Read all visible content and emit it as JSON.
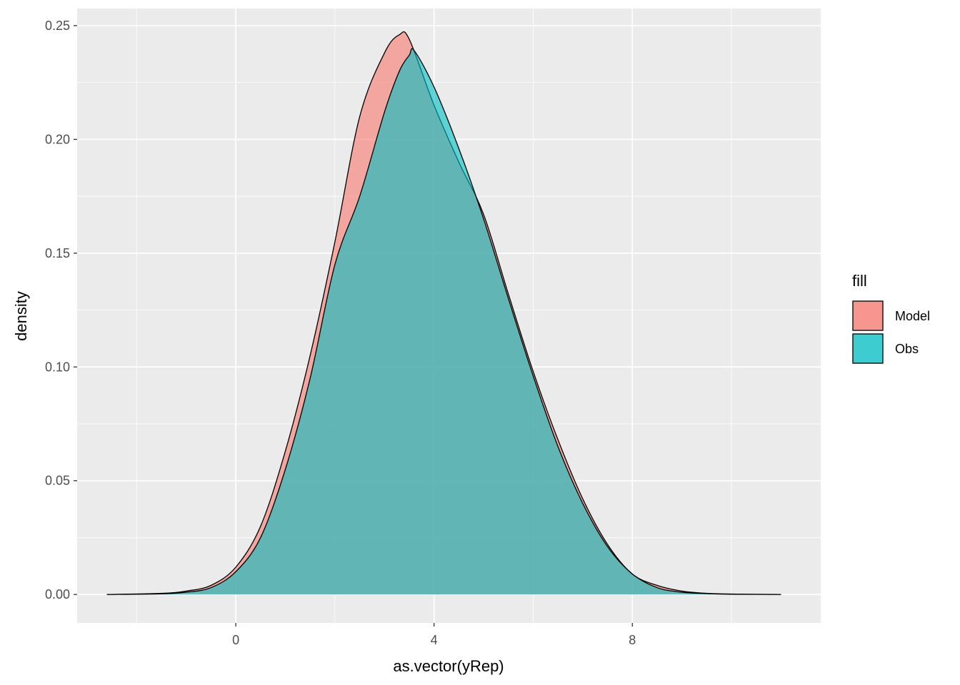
{
  "chart_data": {
    "type": "area",
    "subtype": "density",
    "title": "",
    "xlabel": "as.vector(yRep)",
    "ylabel": "density",
    "xlim": [
      -3.2,
      11.8
    ],
    "ylim": [
      -0.0125,
      0.2575
    ],
    "x_ticks": [
      0,
      4,
      8
    ],
    "x_tick_labels": [
      "0",
      "4",
      "8"
    ],
    "y_ticks": [
      0,
      0.05,
      0.1,
      0.15,
      0.2,
      0.25
    ],
    "y_tick_labels": [
      "0.00",
      "0.05",
      "0.10",
      "0.15",
      "0.20",
      "0.25"
    ],
    "grid": true,
    "legend": {
      "title": "fill",
      "position": "right"
    },
    "series": [
      {
        "name": "Model",
        "color": "#F8766D",
        "x": [
          -2.6,
          -1.5,
          -1.0,
          -0.5,
          0.0,
          0.5,
          1.0,
          1.5,
          2.0,
          2.5,
          3.0,
          3.3,
          3.5,
          4.0,
          4.5,
          5.0,
          5.5,
          6.0,
          6.5,
          7.0,
          7.5,
          8.0,
          8.5,
          9.0,
          9.5,
          10.0,
          11.0
        ],
        "y": [
          0.0,
          0.0005,
          0.0015,
          0.004,
          0.012,
          0.03,
          0.063,
          0.105,
          0.155,
          0.21,
          0.238,
          0.246,
          0.244,
          0.215,
          0.19,
          0.167,
          0.132,
          0.098,
          0.068,
          0.042,
          0.022,
          0.009,
          0.004,
          0.0015,
          0.0005,
          0.0002,
          0.0
        ]
      },
      {
        "name": "Obs",
        "color": "#00BFC4",
        "x": [
          -2.6,
          -1.5,
          -1.0,
          -0.5,
          0.0,
          0.5,
          1.0,
          1.5,
          2.0,
          2.5,
          3.0,
          3.3,
          3.5,
          3.6,
          4.0,
          4.5,
          5.0,
          5.5,
          6.0,
          6.5,
          7.0,
          7.5,
          8.0,
          8.5,
          9.0,
          9.5,
          10.0,
          11.0
        ],
        "y": [
          0.0,
          0.0003,
          0.001,
          0.003,
          0.01,
          0.025,
          0.055,
          0.095,
          0.145,
          0.175,
          0.212,
          0.23,
          0.237,
          0.239,
          0.223,
          0.196,
          0.165,
          0.13,
          0.096,
          0.065,
          0.04,
          0.021,
          0.009,
          0.003,
          0.001,
          0.0004,
          0.0001,
          0.0
        ]
      }
    ]
  }
}
